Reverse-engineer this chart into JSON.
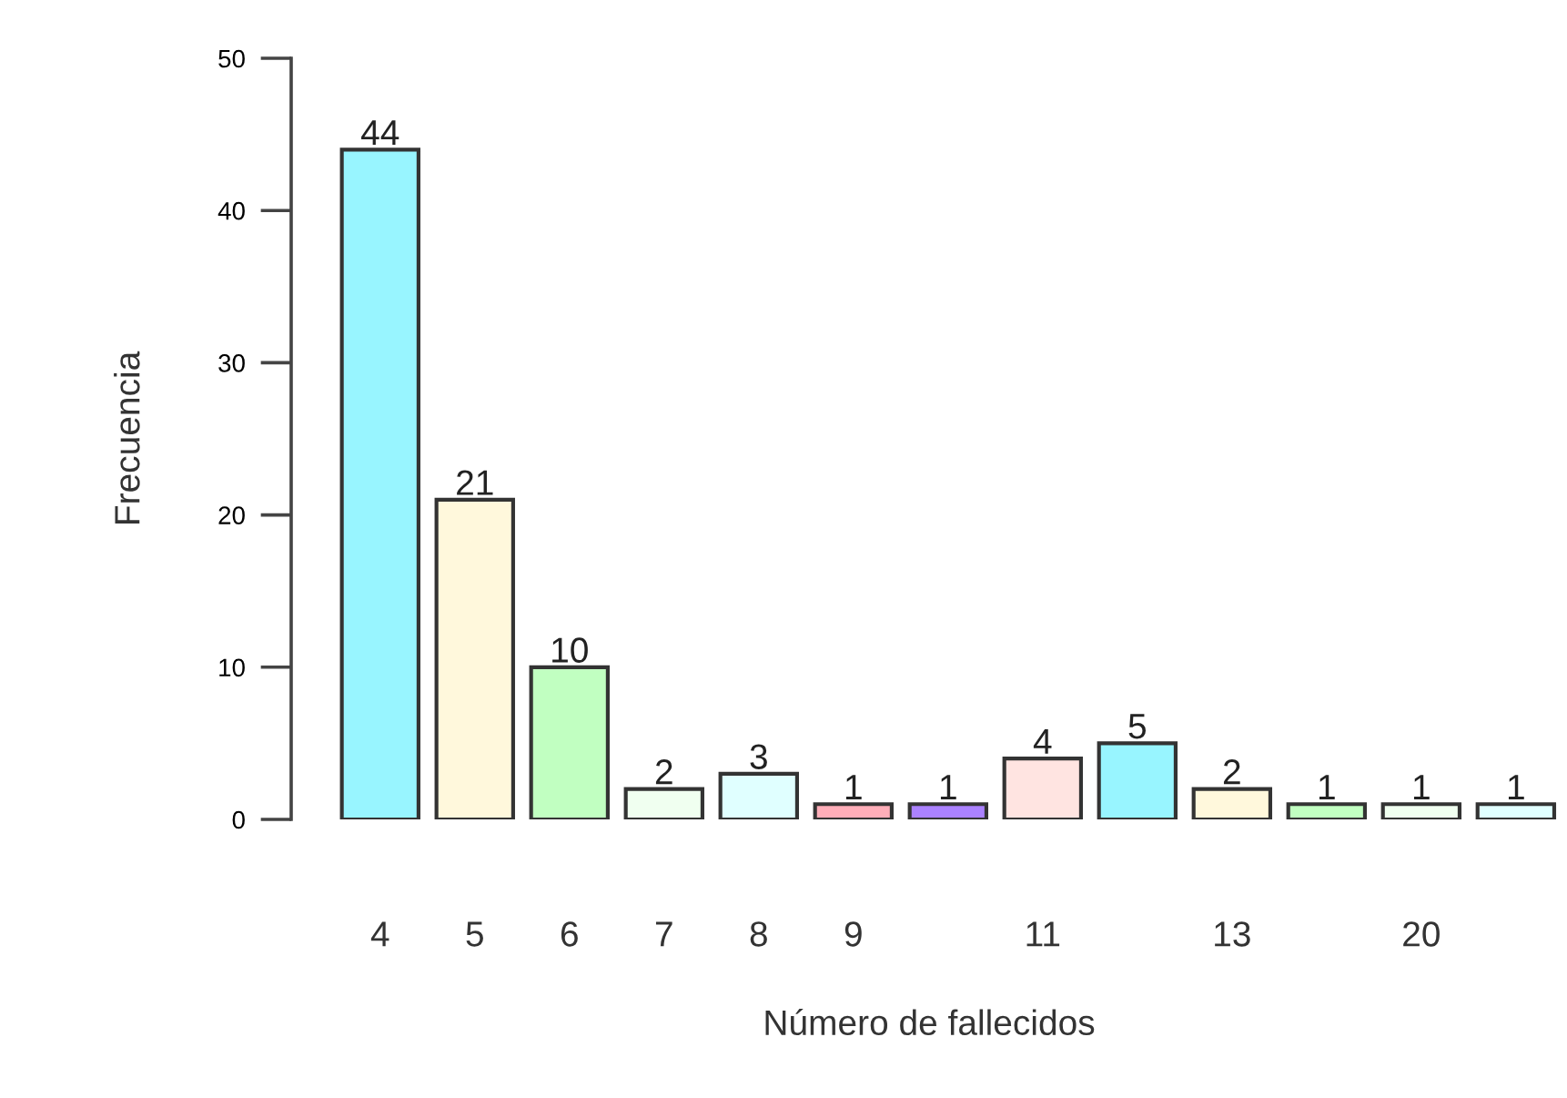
{
  "chart_data": {
    "type": "bar",
    "xlabel": "Número de fallecidos",
    "ylabel": "Frecuencia",
    "categories": [
      "4",
      "5",
      "6",
      "7",
      "8",
      "9",
      null,
      "11",
      null,
      "13",
      null,
      "20",
      null
    ],
    "values": [
      44,
      21,
      10,
      2,
      3,
      1,
      1,
      4,
      5,
      2,
      1,
      1,
      1
    ],
    "colors": [
      "#98f5ff",
      "#fff8dc",
      "#c1ffc1",
      "#f0fff0",
      "#e0ffff",
      "#ffaeb9",
      "#ab82ff",
      "#ffe4e1",
      "#98f5ff",
      "#fff8dc",
      "#c1ffc1",
      "#f0fff0",
      "#e0ffff"
    ],
    "ylim": [
      0,
      50
    ],
    "yticks": [
      0,
      10,
      20,
      30,
      40,
      50
    ],
    "data_labels": true,
    "grid": false,
    "legend": false
  }
}
